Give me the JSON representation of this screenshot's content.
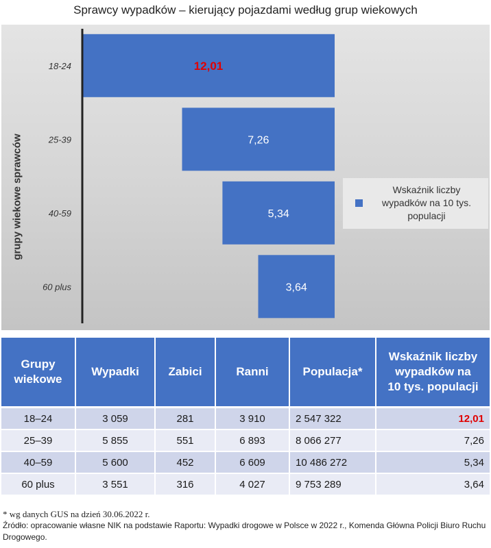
{
  "title": "Sprawcy wypadków – kierujący pojazdami według grup wiekowych",
  "chart_data": {
    "type": "bar",
    "orientation": "horizontal",
    "categories": [
      "18-24",
      "25-39",
      "40-59",
      "60 plus"
    ],
    "values": [
      12.01,
      7.26,
      5.34,
      3.64
    ],
    "value_labels": [
      "12,01",
      "7,26",
      "5,34",
      "3,64"
    ],
    "highlight_index": 0,
    "ylabel": "grupy wiekowe sprawców",
    "legend": {
      "position": "right",
      "lines": [
        "Wskaźnik liczby",
        "wypadków na 10 tys.",
        "populacji"
      ]
    },
    "xlim": [
      0,
      12.01
    ],
    "grid": false,
    "colors": {
      "bar": "#4472c4",
      "highlight_label": "#e00000",
      "label": "#ffffff",
      "axis": "#222222"
    }
  },
  "table": {
    "headers": [
      [
        "Grupy",
        "wiekowe"
      ],
      [
        "Wypadki"
      ],
      [
        "Zabici"
      ],
      [
        "Ranni"
      ],
      [
        "Populacja*"
      ],
      [
        "Wskaźnik liczby",
        "wypadków na",
        "10 tys. populacji"
      ]
    ],
    "rows": [
      [
        "18–24",
        "3 059",
        "281",
        "3 910",
        "2 547 322",
        "12,01"
      ],
      [
        "25–39",
        "5 855",
        "551",
        "6 893",
        "8 066 277",
        "7,26"
      ],
      [
        "40–59",
        "5 600",
        "452",
        "6 609",
        "10 486 272",
        "5,34"
      ],
      [
        "60 plus",
        "3 551",
        "316",
        "4 027",
        "9 753 289",
        "3,64"
      ]
    ]
  },
  "footnote": {
    "asterisk": "* wg danych GUS na dzień 30.06.2022 r.",
    "source": "Źródło: opracowanie własne NIK na podstawie Raportu: Wypadki drogowe w Polsce w 2022 r., Komenda Główna Policji Biuro Ruchu Drogowego."
  }
}
